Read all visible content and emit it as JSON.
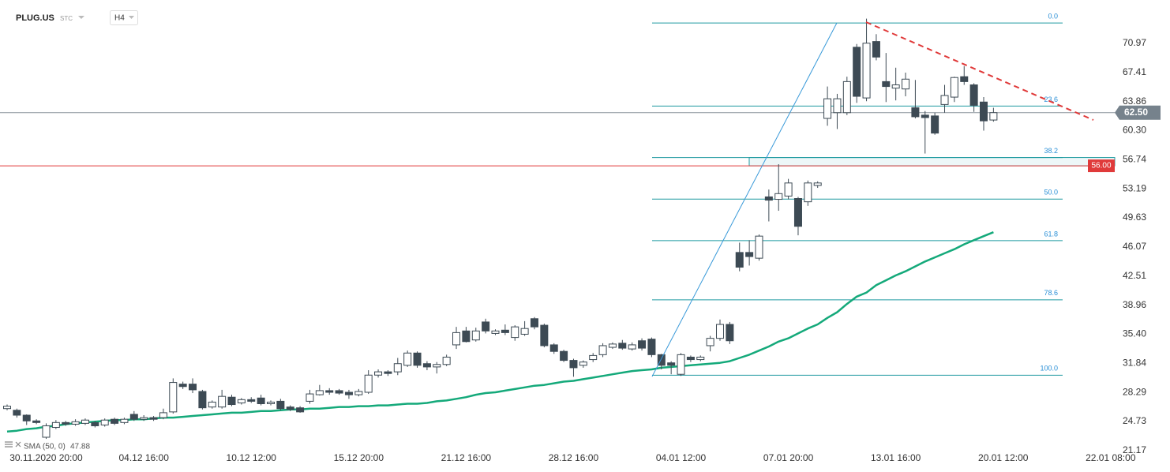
{
  "chart_data": {
    "type": "candlestick",
    "symbol": "PLUG.US",
    "market": "STC",
    "interval": "H4",
    "categories": [
      null,
      null,
      null,
      null,
      "30.11.2020 20:00",
      null,
      null,
      null,
      null,
      null,
      null,
      null,
      null,
      null,
      "04.12 16:00",
      null,
      null,
      null,
      null,
      null,
      null,
      null,
      null,
      null,
      null,
      "10.12 12:00",
      null,
      null,
      null,
      null,
      null,
      null,
      null,
      null,
      null,
      null,
      "15.12 20:00",
      null,
      null,
      null,
      null,
      null,
      null,
      null,
      null,
      null,
      null,
      "21.12 16:00",
      null,
      null,
      null,
      null,
      null,
      null,
      null,
      null,
      null,
      null,
      "28.12 16:00",
      null,
      null,
      null,
      null,
      null,
      null,
      null,
      null,
      null,
      null,
      "04.01 12:00",
      null,
      null,
      null,
      null,
      null,
      null,
      null,
      null,
      null,
      null,
      "07.01 20:00",
      null,
      null,
      null,
      null,
      null,
      null,
      null,
      null,
      null,
      null,
      "13.01 16:00",
      null,
      null,
      null,
      null,
      null,
      null,
      null,
      null,
      null,
      null,
      "20.01 12:00",
      null,
      null,
      null,
      null,
      null,
      null,
      null,
      null,
      null,
      null,
      "22.01 08:00"
    ],
    "open": [
      26.3,
      26.1,
      25.5,
      24.8,
      22.8,
      24.0,
      24.6,
      24.4,
      24.5,
      24.6,
      24.3,
      25.0,
      24.6,
      25.6,
      25.0,
      25.2,
      25.2,
      25.9,
      29.3,
      29.3,
      28.4,
      26.5,
      26.5,
      27.7,
      27.0,
      27.4,
      27.6,
      26.9,
      27.2,
      26.5,
      26.4,
      27.2,
      28.0,
      28.5,
      28.5,
      28.3,
      28.0,
      28.3,
      30.4,
      30.8,
      30.8,
      31.6,
      33.1,
      31.8,
      31.4,
      31.7,
      34.1,
      35.8,
      34.7,
      36.9,
      35.5,
      35.9,
      35.0,
      35.4,
      37.3,
      36.5,
      34.1,
      33.3,
      32.2,
      31.6,
      32.3,
      32.9,
      33.8,
      34.3,
      33.6,
      34.6,
      34.8,
      32.9,
      31.9,
      30.5,
      32.6,
      32.3,
      34.0,
      34.9,
      36.6,
      45.4,
      45.4,
      44.7,
      52.2,
      51.9,
      52.3,
      52.0,
      51.6,
      53.6,
      61.8,
      62.5,
      62.5,
      70.5,
      64.3,
      71.2,
      66.3,
      65.5,
      65.4,
      63.1,
      62.2,
      62.1,
      63.5,
      64.4,
      66.9,
      65.9,
      63.8,
      61.6,
      null,
      null,
      null,
      null,
      null,
      null,
      null,
      null,
      null,
      null,
      null,
      null
    ],
    "high": [
      26.8,
      26.3,
      25.6,
      25.0,
      24.5,
      24.9,
      24.8,
      25.0,
      25.1,
      24.8,
      25.1,
      25.2,
      25.2,
      26.0,
      25.5,
      25.4,
      26.3,
      30.0,
      29.6,
      30.0,
      28.6,
      27.3,
      28.6,
      28.0,
      27.6,
      27.7,
      28.0,
      27.3,
      27.5,
      26.7,
      26.6,
      28.6,
      29.2,
      28.8,
      28.7,
      28.6,
      28.7,
      31.0,
      31.1,
      31.0,
      32.5,
      33.4,
      33.3,
      32.1,
      32.0,
      32.9,
      36.3,
      36.3,
      36.2,
      37.3,
      36.0,
      36.6,
      36.5,
      37.0,
      37.5,
      36.7,
      34.3,
      33.5,
      32.4,
      32.2,
      33.1,
      34.3,
      34.4,
      34.7,
      34.4,
      34.9,
      35.0,
      33.0,
      32.1,
      33.1,
      32.8,
      32.8,
      35.2,
      37.2,
      36.9,
      46.6,
      46.9,
      47.6,
      53.1,
      56.2,
      54.4,
      52.2,
      54.2,
      54.1,
      65.7,
      64.8,
      66.9,
      70.9,
      74.0,
      72.1,
      69.8,
      68.0,
      67.4,
      66.5,
      62.7,
      62.5,
      65.9,
      66.9,
      68.2,
      66.1,
      64.4,
      63.1,
      null,
      null,
      null,
      null,
      null,
      null,
      null,
      null,
      null,
      null,
      null,
      null
    ],
    "low": [
      26.1,
      25.2,
      24.3,
      24.4,
      22.6,
      23.8,
      24.2,
      24.2,
      24.3,
      24.0,
      24.1,
      24.3,
      24.4,
      24.8,
      24.8,
      24.8,
      25.0,
      25.7,
      28.7,
      28.2,
      26.2,
      26.3,
      26.3,
      26.6,
      26.8,
      27.0,
      26.7,
      26.7,
      26.1,
      26.0,
      25.8,
      26.9,
      27.9,
      28.0,
      28.0,
      27.5,
      27.8,
      28.1,
      30.1,
      30.3,
      30.4,
      31.4,
      31.3,
      31.0,
      30.6,
      31.5,
      33.6,
      34.4,
      34.5,
      35.5,
      35.3,
      35.3,
      34.6,
      35.2,
      36.0,
      33.8,
      33.0,
      32.0,
      30.2,
      31.3,
      32.0,
      32.6,
      33.6,
      33.5,
      33.4,
      33.4,
      32.6,
      31.1,
      30.5,
      30.3,
      32.0,
      32.1,
      33.3,
      34.6,
      34.2,
      43.1,
      43.8,
      44.4,
      49.2,
      50.5,
      51.9,
      47.5,
      51.1,
      53.3,
      60.9,
      60.5,
      62.2,
      63.7,
      63.9,
      68.9,
      63.8,
      64.0,
      64.5,
      61.8,
      57.5,
      59.8,
      62.5,
      63.8,
      65.9,
      62.6,
      60.3,
      61.4,
      null,
      null,
      null,
      null,
      null,
      null,
      null,
      null,
      null,
      null,
      null,
      null
    ],
    "close": [
      26.6,
      25.5,
      24.8,
      24.6,
      24.2,
      24.6,
      24.4,
      24.7,
      24.9,
      24.2,
      24.9,
      24.5,
      25.0,
      25.0,
      25.2,
      25.0,
      25.8,
      29.5,
      29.0,
      28.6,
      26.4,
      27.1,
      27.8,
      26.8,
      27.4,
      27.2,
      26.9,
      27.1,
      26.3,
      26.2,
      25.9,
      28.1,
      28.5,
      28.3,
      28.2,
      28.0,
      28.4,
      30.4,
      30.8,
      30.6,
      31.8,
      33.1,
      31.6,
      31.4,
      31.7,
      32.6,
      35.6,
      34.5,
      35.8,
      35.8,
      35.8,
      35.6,
      36.3,
      36.1,
      36.3,
      34.0,
      33.3,
      32.2,
      31.3,
      32.0,
      32.8,
      34.0,
      34.2,
      33.7,
      34.1,
      33.7,
      32.9,
      31.6,
      31.6,
      32.9,
      32.3,
      32.6,
      34.9,
      36.6,
      34.6,
      43.6,
      44.9,
      47.4,
      51.8,
      52.6,
      53.9,
      48.6,
      53.9,
      53.9,
      64.2,
      64.2,
      66.3,
      64.5,
      71.0,
      69.3,
      65.7,
      65.9,
      66.6,
      62.0,
      61.9,
      60.0,
      64.6,
      66.8,
      66.3,
      63.4,
      61.5,
      62.5,
      null,
      null,
      null,
      null,
      null,
      null,
      null,
      null,
      null,
      null,
      null,
      null
    ],
    "up_color": "#ffffff",
    "down_color": "#3d4a54",
    "ylim": [
      20.77,
      76.28
    ],
    "yticks": [
      70.97,
      67.41,
      63.86,
      {
        "value": 60.3,
        "label": "60.30"
      },
      56.74,
      53.19,
      49.63,
      46.07,
      42.51,
      38.96,
      {
        "value": 35.4,
        "label": "35.40"
      },
      31.84,
      28.29,
      24.73,
      21.17
    ],
    "indicator": {
      "name": "SMA (50, 0)",
      "last": 47.88,
      "color": "#14a97a",
      "values": [
        23.5,
        23.6,
        23.8,
        23.9,
        24.1,
        24.2,
        24.4,
        24.5,
        24.6,
        24.7,
        24.8,
        24.9,
        24.9,
        25.0,
        25.0,
        25.1,
        25.2,
        25.2,
        25.3,
        25.4,
        25.5,
        25.6,
        25.7,
        25.8,
        25.8,
        25.9,
        26.0,
        26.0,
        26.1,
        26.2,
        26.2,
        26.3,
        26.3,
        26.4,
        26.5,
        26.5,
        26.6,
        26.6,
        26.7,
        26.7,
        26.8,
        26.9,
        26.9,
        27.0,
        27.2,
        27.3,
        27.5,
        27.7,
        28.0,
        28.2,
        28.3,
        28.5,
        28.7,
        28.9,
        29.1,
        29.2,
        29.4,
        29.6,
        29.7,
        29.9,
        30.1,
        30.3,
        30.5,
        30.7,
        30.9,
        31.0,
        31.1,
        31.3,
        31.4,
        31.5,
        31.6,
        31.7,
        31.8,
        31.9,
        32.1,
        32.5,
        32.9,
        33.4,
        33.9,
        34.5,
        34.9,
        35.5,
        36.1,
        36.6,
        37.4,
        38.1,
        39.1,
        40.0,
        40.5,
        41.4,
        42.0,
        42.6,
        43.1,
        43.7,
        44.3,
        44.8,
        45.3,
        45.8,
        46.4,
        46.9,
        47.4,
        47.88,
        null,
        null,
        null,
        null,
        null,
        null,
        null,
        null,
        null,
        null,
        null,
        null
      ]
    },
    "last_price": {
      "value": 62.5,
      "label": "62.50"
    },
    "level": {
      "value": 56,
      "label": "56.00"
    },
    "fib": {
      "high": 73.47,
      "low": 30.39,
      "color": "#1f9aa0",
      "levels": [
        {
          "value": 0,
          "label": "0.0"
        },
        23.6,
        38.2,
        {
          "value": 50,
          "label": "50.0"
        },
        61.8,
        78.6,
        {
          "value": 100,
          "label": "100.0"
        }
      ]
    }
  }
}
